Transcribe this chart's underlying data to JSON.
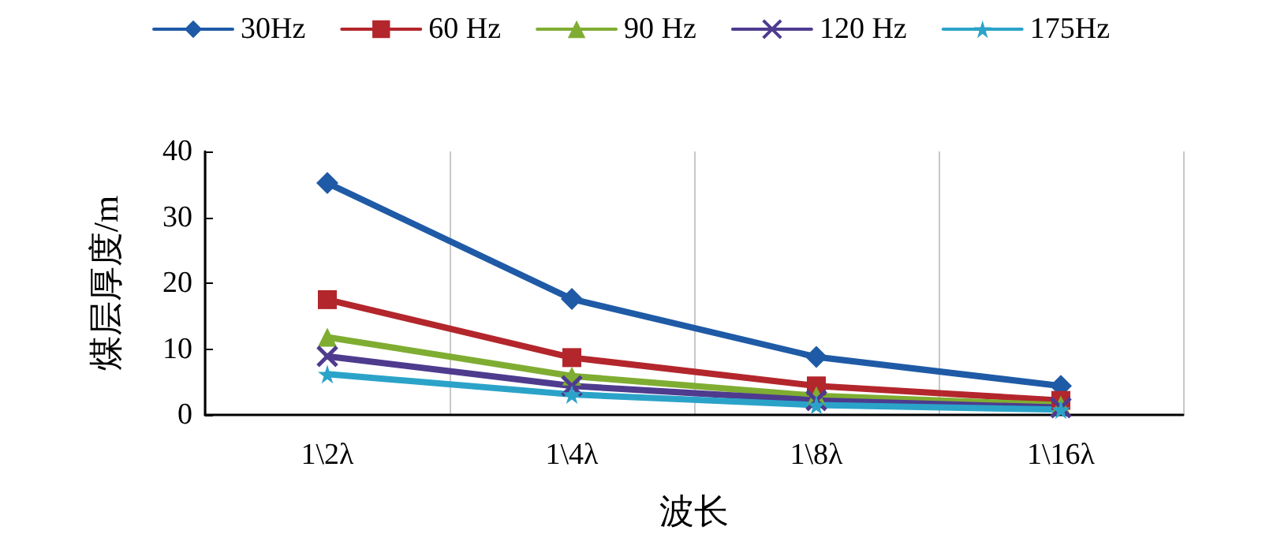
{
  "chart_data": {
    "type": "line",
    "xlabel": "波长",
    "ylabel": "煤层厚度/m",
    "categories": [
      "1\\2λ",
      "1\\4λ",
      "1\\8λ",
      "1\\16λ"
    ],
    "series": [
      {
        "name": "30Hz",
        "color": "#1f5aa6",
        "marker": "diamond",
        "values": [
          35.2,
          17.6,
          8.8,
          4.4
        ]
      },
      {
        "name": "60 Hz",
        "color": "#b3262c",
        "marker": "square",
        "values": [
          17.5,
          8.7,
          4.4,
          2.2
        ]
      },
      {
        "name": "90 Hz",
        "color": "#7fad32",
        "marker": "triangle",
        "values": [
          11.8,
          5.9,
          2.9,
          1.5
        ]
      },
      {
        "name": "120 Hz",
        "color": "#4e3b8e",
        "marker": "cross",
        "values": [
          8.9,
          4.4,
          2.2,
          1.1
        ]
      },
      {
        "name": "175Hz",
        "color": "#2ba3c9",
        "marker": "star",
        "values": [
          6.2,
          3.1,
          1.5,
          0.8
        ]
      }
    ],
    "ylim": [
      0,
      40
    ],
    "yticks": [
      0,
      10,
      20,
      30,
      40
    ],
    "grid": "x",
    "legend": "top",
    "line_style": "solid"
  }
}
